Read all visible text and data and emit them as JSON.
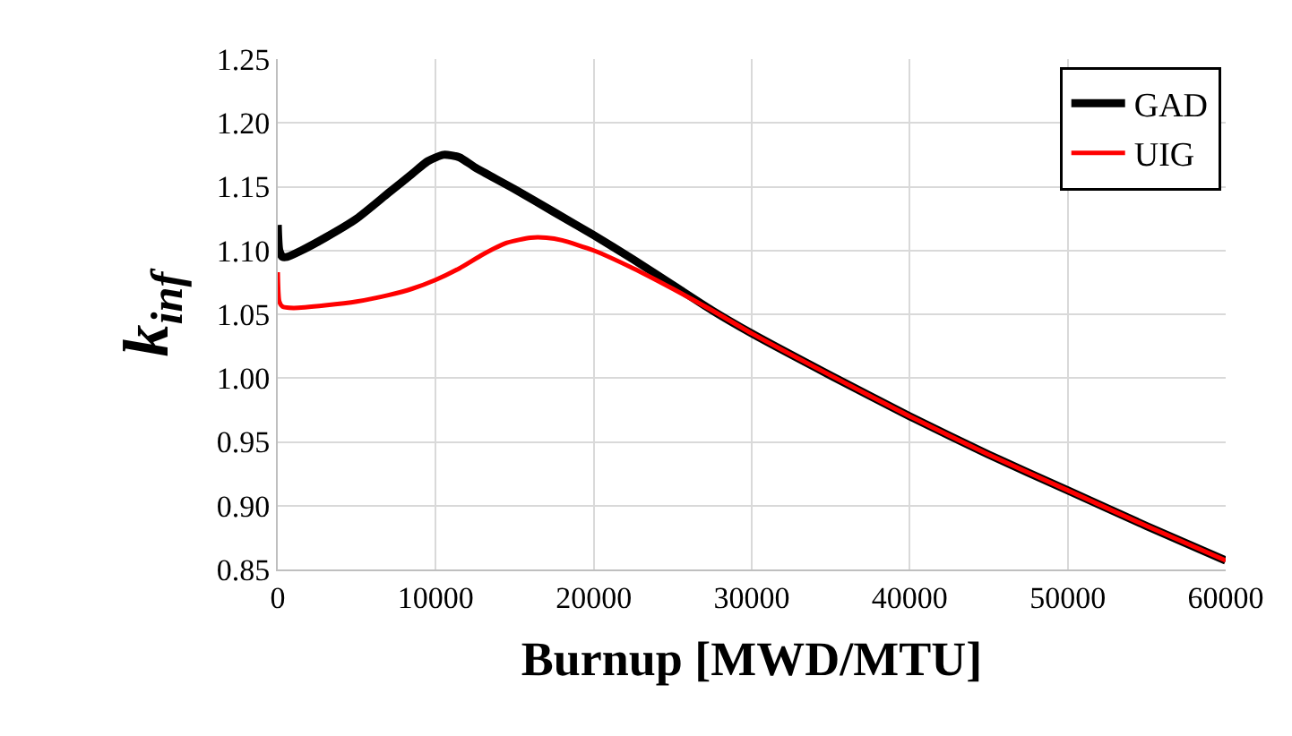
{
  "chart_data": {
    "type": "line",
    "xlabel": "Burnup [MWD/MTU]",
    "ylabel": "k$_{inf}$",
    "xlim": [
      0,
      60000
    ],
    "xticks": [
      0,
      10000,
      20000,
      30000,
      40000,
      50000,
      60000
    ],
    "ylim": [
      0.85,
      1.25
    ],
    "yticks": [
      {
        "value": 0.85,
        "label": "0.85"
      },
      {
        "value": 0.9,
        "label": "0.90"
      },
      {
        "value": 0.95,
        "label": "0.95"
      },
      {
        "value": 1.0,
        "label": "1.00"
      },
      {
        "value": 1.05,
        "label": "1.05"
      },
      {
        "value": 1.1,
        "label": "1.10"
      },
      {
        "value": 1.15,
        "label": "1.15"
      },
      {
        "value": 1.2,
        "label": "1.20"
      },
      {
        "value": 1.25,
        "label": "1.25"
      }
    ],
    "grid": true,
    "legend": "top right",
    "marker": "none",
    "line_style": "solid",
    "series": [
      {
        "name": "GAD",
        "color": "#000000",
        "x": [
          0,
          100,
          300,
          600,
          1500,
          3000,
          5000,
          7000,
          8500,
          9500,
          10500,
          11500,
          12500,
          15000,
          17500,
          20000,
          22500,
          25000,
          27500,
          30000,
          35000,
          40000,
          45000,
          50000,
          55000,
          60000
        ],
        "values": [
          1.12,
          1.1,
          1.095,
          1.095,
          1.1,
          1.11,
          1.125,
          1.145,
          1.16,
          1.17,
          1.175,
          1.173,
          1.165,
          1.148,
          1.13,
          1.112,
          1.093,
          1.073,
          1.053,
          1.035,
          1.002,
          0.97,
          0.94,
          0.912,
          0.884,
          0.857
        ]
      },
      {
        "name": "UIG",
        "color": "#ff0000",
        "x": [
          0,
          100,
          300,
          1000,
          3000,
          5000,
          7000,
          8500,
          10000,
          11500,
          13000,
          14500,
          16000,
          17000,
          18000,
          20000,
          22500,
          25000,
          27500,
          30000,
          35000,
          40000,
          45000,
          50000,
          55000,
          60000
        ],
        "values": [
          1.083,
          1.06,
          1.056,
          1.055,
          1.057,
          1.06,
          1.065,
          1.07,
          1.077,
          1.086,
          1.097,
          1.106,
          1.11,
          1.11,
          1.108,
          1.1,
          1.086,
          1.07,
          1.053,
          1.035,
          1.002,
          0.97,
          0.94,
          0.912,
          0.884,
          0.857
        ]
      }
    ]
  }
}
